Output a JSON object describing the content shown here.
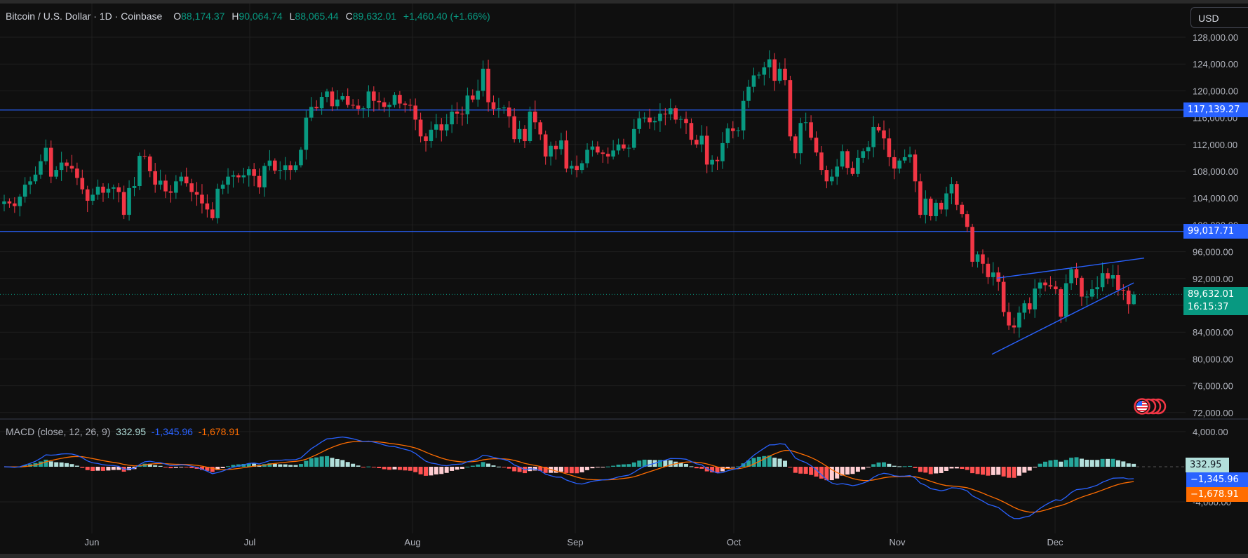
{
  "legend": {
    "symbol": "Bitcoin / U.S. Dollar",
    "interval": "1D",
    "exchange": "Coinbase",
    "open_label": "O",
    "open": "88,174.37",
    "high_label": "H",
    "high": "90,064.74",
    "low_label": "L",
    "low": "88,065.44",
    "close_label": "C",
    "close": "89,632.01",
    "change": "+1,460.40 (+1.66%)"
  },
  "currency_button": "USD",
  "price_axis": {
    "ticks": [
      "128,000.00",
      "124,000.00",
      "120,000.00",
      "116,000.00",
      "112,000.00",
      "108,000.00",
      "104,000.00",
      "100,000.00",
      "96,000.00",
      "92,000.00",
      "88,000.00",
      "84,000.00",
      "80,000.00",
      "76,000.00",
      "72,000.00"
    ],
    "hline_upper": "117,139.27",
    "hline_lower": "99,017.71",
    "last_price": "89,632.01",
    "countdown": "16:15:37"
  },
  "macd": {
    "title": "MACD (close, 12, 26, 9)",
    "histogram": "332.95",
    "macd": "-1,345.96",
    "signal": "-1,678.91",
    "axis_ticks": [
      "4,000.00",
      "-4,000.00"
    ],
    "tag_histogram": "332.95",
    "tag_macd": "−1,345.96",
    "tag_signal": "−1,678.91"
  },
  "time_axis": {
    "labels": [
      "Jun",
      "Jul",
      "Aug",
      "Sep",
      "Oct",
      "Nov",
      "Dec"
    ]
  },
  "colors": {
    "up": "#089981",
    "down": "#f23645",
    "hline": "#2962ff",
    "macd_line": "#2962ff",
    "signal_line": "#ff6d00",
    "hist_up_strong": "#26a69a",
    "hist_up_weak": "#b2dfdb",
    "hist_down_strong": "#ff5252",
    "hist_down_weak": "#ffcdd2",
    "grid": "#1f1f1f",
    "bg": "#0f0f0f"
  },
  "chart_data": {
    "type": "candlestick",
    "title": "Bitcoin / U.S. Dollar · 1D · Coinbase",
    "xlabel": "",
    "ylabel": "USD",
    "ylim": [
      70000,
      130000
    ],
    "grid": true,
    "x_start": "May 13",
    "x_end": "Dec 15",
    "month_ticks": [
      "Jun",
      "Jul",
      "Aug",
      "Sep",
      "Oct",
      "Nov",
      "Dec"
    ],
    "closes_k": [
      103.5,
      103.2,
      102.8,
      104.2,
      106,
      106.5,
      107.5,
      109.5,
      111.5,
      107.2,
      108.2,
      109.3,
      108.8,
      108.4,
      107,
      105.3,
      103.6,
      104.5,
      105.7,
      104.8,
      105.4,
      105.6,
      104.9,
      101.5,
      105.5,
      105.8,
      110.3,
      110.2,
      108,
      106,
      106.6,
      105,
      104.8,
      106.5,
      107.2,
      106.2,
      104.9,
      104.5,
      103.2,
      102.3,
      101,
      105.4,
      106,
      107.2,
      107.4,
      107.1,
      107.4,
      108.3,
      107.3,
      105.6,
      108.8,
      109.6,
      108.1,
      108.2,
      108.9,
      108.2,
      108.9,
      111.2,
      116,
      117.6,
      117.4,
      119.1,
      119.9,
      117.7,
      118.7,
      119.2,
      117.9,
      117.8,
      117.3,
      117.4,
      119.9,
      118.5,
      118.3,
      117.6,
      117.9,
      119.4,
      118.1,
      117.9,
      117.8,
      115.7,
      113.2,
      112.5,
      114.2,
      115,
      114.1,
      115,
      116.9,
      116.6,
      116.5,
      119.3,
      118.7,
      120,
      123.3,
      118.3,
      117.3,
      117.4,
      117.5,
      116.2,
      112.8,
      114.3,
      112.5,
      116.9,
      115.3,
      113.5,
      110.2,
      111.8,
      111.3,
      112.6,
      108.4,
      108.8,
      108.2,
      109.2,
      111.2,
      111.7,
      110.8,
      110.6,
      110.2,
      111.1,
      112,
      111.4,
      111.5,
      114.3,
      115.9,
      116,
      115.3,
      115.5,
      116.6,
      116.5,
      117.4,
      115.7,
      115.8,
      115.2,
      112.7,
      112,
      113.3,
      109,
      109.7,
      109.5,
      112.2,
      114.4,
      114,
      114.1,
      118.5,
      120.6,
      122.3,
      122.4,
      123.5,
      124.7,
      121.5,
      123.3,
      121.6,
      113.2,
      110.7,
      115.2,
      115.3,
      113,
      110.8,
      108.2,
      106.5,
      107.2,
      108.7,
      111,
      108.5,
      107.6,
      110,
      111,
      111.6,
      114.6,
      114.1,
      112.9,
      110.1,
      108.4,
      109.6,
      110.1,
      110.5,
      106.5,
      101.5,
      103.9,
      101.3,
      103.3,
      102.3,
      104.7,
      106.1,
      103,
      101.6,
      99.7,
      94.5,
      95.6,
      94.2,
      92.2,
      92.9,
      91.5,
      87,
      85,
      84.7,
      86.9,
      88.3,
      87.4,
      90.5,
      91.4,
      91,
      90.8,
      90.4,
      86.3,
      91.3,
      93.4,
      92.1,
      89.3,
      89.3,
      90.4,
      90.7,
      92.8,
      92,
      92.5,
      90.3,
      90.2,
      88.174,
      89.632
    ],
    "last_ohlc": {
      "open": 88174.37,
      "high": 90064.74,
      "low": 88065.44,
      "close": 89632.01
    },
    "horizontal_lines": [
      117139.27,
      99017.71
    ],
    "trendlines": [
      {
        "name": "wedge-upper",
        "from": [
          86.0,
          "Nov 21"
        ],
        "to": [
          95.0,
          "Dec 18"
        ]
      },
      {
        "name": "wedge-lower",
        "from": [
          80.8,
          "Nov 20"
        ],
        "to": [
          91.3,
          "Dec 16"
        ]
      }
    ],
    "macd": {
      "params": [
        12,
        26,
        9
      ],
      "histogram": 332.95,
      "macd": -1345.96,
      "signal": -1678.91,
      "ylim_ticks": [
        4000,
        -4000
      ]
    }
  }
}
